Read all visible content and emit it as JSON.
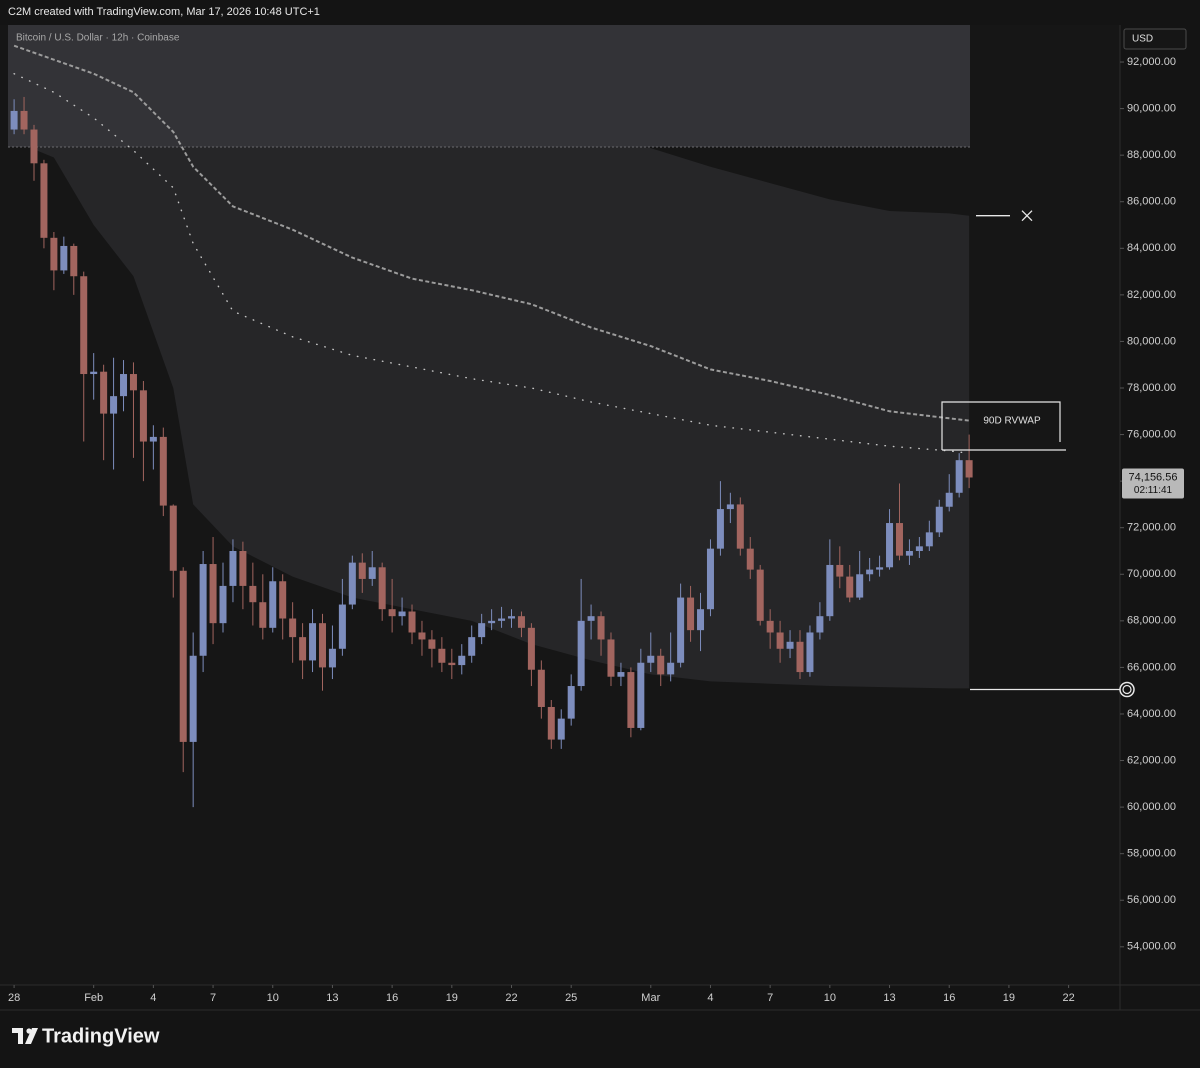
{
  "header": "C2M created with TradingView.com, Mar 17, 2026 10:48 UTC+1",
  "footer_brand": "TradingView",
  "chart_data": {
    "type": "candlestick",
    "title": "Bitcoin / U.S. Dollar · 12h · Coinbase",
    "y_axis_label": "USD",
    "up_color": "#7d8dbd",
    "down_color": "#a2655f",
    "x": [
      "2026-01-28 00:00",
      "2026-01-28 12:00",
      "2026-01-29 00:00",
      "2026-01-29 12:00",
      "2026-01-30 00:00",
      "2026-01-30 12:00",
      "2026-01-31 00:00",
      "2026-01-31 12:00",
      "2026-02-01 00:00",
      "2026-02-01 12:00",
      "2026-02-02 00:00",
      "2026-02-02 12:00",
      "2026-02-03 00:00",
      "2026-02-03 12:00",
      "2026-02-04 00:00",
      "2026-02-04 12:00",
      "2026-02-05 00:00",
      "2026-02-05 12:00",
      "2026-02-06 00:00",
      "2026-02-06 12:00",
      "2026-02-07 00:00",
      "2026-02-07 12:00",
      "2026-02-08 00:00",
      "2026-02-08 12:00",
      "2026-02-09 00:00",
      "2026-02-09 12:00",
      "2026-02-10 00:00",
      "2026-02-10 12:00",
      "2026-02-11 00:00",
      "2026-02-11 12:00",
      "2026-02-12 00:00",
      "2026-02-12 12:00",
      "2026-02-13 00:00",
      "2026-02-13 12:00",
      "2026-02-14 00:00",
      "2026-02-14 12:00",
      "2026-02-15 00:00",
      "2026-02-15 12:00",
      "2026-02-16 00:00",
      "2026-02-16 12:00",
      "2026-02-17 00:00",
      "2026-02-17 12:00",
      "2026-02-18 00:00",
      "2026-02-18 12:00",
      "2026-02-19 00:00",
      "2026-02-19 12:00",
      "2026-02-20 00:00",
      "2026-02-20 12:00",
      "2026-02-21 00:00",
      "2026-02-21 12:00",
      "2026-02-22 00:00",
      "2026-02-22 12:00",
      "2026-02-23 00:00",
      "2026-02-23 12:00",
      "2026-02-24 00:00",
      "2026-02-24 12:00",
      "2026-02-25 00:00",
      "2026-02-25 12:00",
      "2026-02-26 00:00",
      "2026-02-26 12:00",
      "2026-02-27 00:00",
      "2026-02-27 12:00",
      "2026-02-28 00:00",
      "2026-02-28 12:00",
      "2026-03-01 00:00",
      "2026-03-01 12:00",
      "2026-03-02 00:00",
      "2026-03-02 12:00",
      "2026-03-03 00:00",
      "2026-03-03 12:00",
      "2026-03-04 00:00",
      "2026-03-04 12:00",
      "2026-03-05 00:00",
      "2026-03-05 12:00",
      "2026-03-06 00:00",
      "2026-03-06 12:00",
      "2026-03-07 00:00",
      "2026-03-07 12:00",
      "2026-03-08 00:00",
      "2026-03-08 12:00",
      "2026-03-09 00:00",
      "2026-03-09 12:00",
      "2026-03-10 00:00",
      "2026-03-10 12:00",
      "2026-03-11 00:00",
      "2026-03-11 12:00",
      "2026-03-12 00:00",
      "2026-03-12 12:00",
      "2026-03-13 00:00",
      "2026-03-13 12:00",
      "2026-03-14 00:00",
      "2026-03-14 12:00",
      "2026-03-15 00:00",
      "2026-03-15 12:00",
      "2026-03-16 00:00",
      "2026-03-16 12:00",
      "2026-03-17 00:00"
    ],
    "open": [
      89100,
      89900,
      89100,
      87650,
      84450,
      83050,
      84100,
      82800,
      78600,
      78700,
      76900,
      77650,
      78600,
      77900,
      75700,
      75900,
      72950,
      70150,
      62800,
      66500,
      70440,
      67900,
      69500,
      71000,
      69500,
      68800,
      67700,
      69700,
      68100,
      67300,
      66300,
      67900,
      66000,
      66800,
      68700,
      70500,
      69800,
      70300,
      68500,
      68200,
      68400,
      67500,
      67200,
      66800,
      66200,
      66100,
      66500,
      67300,
      67900,
      68000,
      68100,
      68200,
      67700,
      65900,
      64300,
      62900,
      63800,
      65200,
      68000,
      68200,
      67200,
      65600,
      65800,
      63400,
      66200,
      66500,
      65700,
      66200,
      69000,
      67600,
      68500,
      71100,
      72800,
      73000,
      71100,
      70200,
      68000,
      67500,
      66800,
      67100,
      65800,
      67500,
      68200,
      70400,
      69900,
      69000,
      70000,
      70200,
      70300,
      72200,
      70800,
      71000,
      71200,
      71800,
      72900,
      73500,
      74900
    ],
    "high": [
      90400,
      90500,
      89300,
      87800,
      84700,
      84500,
      84200,
      83000,
      79500,
      79000,
      79300,
      79200,
      79100,
      78300,
      76400,
      76300,
      73000,
      70300,
      67500,
      71000,
      71600,
      70500,
      71500,
      71400,
      70500,
      70000,
      70300,
      70000,
      68800,
      67900,
      68500,
      68300,
      67800,
      69800,
      70800,
      70900,
      71000,
      70500,
      69800,
      69000,
      68700,
      68000,
      67600,
      67300,
      66800,
      67000,
      67800,
      68300,
      68500,
      68600,
      68500,
      68400,
      67900,
      66300,
      64600,
      64200,
      65700,
      69800,
      68700,
      68400,
      67500,
      66200,
      66000,
      66800,
      67500,
      66800,
      67500,
      69600,
      69500,
      69200,
      71500,
      74000,
      73500,
      73300,
      71600,
      70400,
      68500,
      68000,
      67600,
      67600,
      67800,
      68800,
      71500,
      71200,
      70400,
      71000,
      70700,
      70800,
      72800,
      73900,
      71500,
      71600,
      72300,
      73200,
      74300,
      75200,
      76000
    ],
    "low": [
      88900,
      88900,
      86900,
      84000,
      82200,
      82900,
      82000,
      75700,
      77500,
      74900,
      74500,
      77000,
      75000,
      74000,
      74500,
      72500,
      69000,
      61500,
      60000,
      65800,
      67000,
      67500,
      68800,
      68500,
      67800,
      67200,
      67500,
      67200,
      66200,
      65500,
      65800,
      65000,
      65500,
      66500,
      68500,
      69200,
      69500,
      68000,
      67500,
      67800,
      67000,
      66500,
      66000,
      65800,
      65500,
      65700,
      66200,
      67000,
      67600,
      67700,
      67700,
      67300,
      65200,
      63800,
      62500,
      62500,
      63500,
      65000,
      67200,
      66500,
      65200,
      65200,
      63000,
      63300,
      65800,
      65200,
      65400,
      66000,
      67100,
      66700,
      68200,
      70800,
      72200,
      70800,
      69800,
      67800,
      66800,
      66200,
      66400,
      65500,
      65600,
      67200,
      68000,
      69400,
      68800,
      68900,
      69700,
      69900,
      70200,
      70600,
      70400,
      70700,
      71000,
      71600,
      72700,
      73300,
      73700
    ],
    "close": [
      89900,
      89100,
      87650,
      84450,
      83050,
      84100,
      82800,
      78600,
      78700,
      76900,
      77650,
      78600,
      77900,
      75700,
      75900,
      72950,
      70150,
      62800,
      66500,
      70440,
      67900,
      69500,
      71000,
      69500,
      68800,
      67700,
      69700,
      68100,
      67300,
      66300,
      67900,
      66000,
      66800,
      68700,
      70500,
      69800,
      70300,
      68500,
      68200,
      68400,
      67500,
      67200,
      66800,
      66200,
      66100,
      66500,
      67300,
      67900,
      68000,
      68100,
      68200,
      67700,
      65900,
      64300,
      62900,
      63800,
      65200,
      68000,
      68200,
      67200,
      65600,
      65800,
      63400,
      66200,
      66500,
      65700,
      66200,
      69000,
      67600,
      68500,
      71100,
      72800,
      73000,
      71100,
      70200,
      68000,
      67500,
      66800,
      67100,
      65800,
      67500,
      68200,
      70400,
      69900,
      69000,
      70000,
      70200,
      70300,
      72200,
      70800,
      71000,
      71200,
      71800,
      72900,
      73500,
      74900,
      74156.56
    ],
    "last_close_label": "74,156.56",
    "countdown": "02:11:41",
    "annotation": "90D RVWAP",
    "overlays": [
      {
        "style": "dashed",
        "color": "#9c9c9c",
        "x": [
          "2026-01-28 00:00",
          "2026-01-30 00:00",
          "2026-02-01 00:00",
          "2026-02-03 00:00",
          "2026-02-05 00:00",
          "2026-02-06 00:00",
          "2026-02-08 00:00",
          "2026-02-11 00:00",
          "2026-02-14 00:00",
          "2026-02-17 00:00",
          "2026-02-20 00:00",
          "2026-02-23 00:00",
          "2026-02-26 00:00",
          "2026-03-01 00:00",
          "2026-03-04 00:00",
          "2026-03-07 00:00",
          "2026-03-10 00:00",
          "2026-03-13 00:00",
          "2026-03-16 00:00",
          "2026-03-17 00:00"
        ],
        "values": [
          92700,
          92100,
          91500,
          90700,
          89000,
          87500,
          85800,
          84800,
          83600,
          82700,
          82200,
          81600,
          80600,
          79800,
          78800,
          78300,
          77700,
          77000,
          76700,
          76600
        ]
      },
      {
        "style": "dotted",
        "color": "#c4c4c4",
        "x": [
          "2026-01-28 00:00",
          "2026-01-30 00:00",
          "2026-02-01 00:00",
          "2026-02-03 00:00",
          "2026-02-05 00:00",
          "2026-02-06 00:00",
          "2026-02-08 00:00",
          "2026-02-11 00:00",
          "2026-02-14 00:00",
          "2026-02-17 00:00",
          "2026-02-20 00:00",
          "2026-02-23 00:00",
          "2026-02-26 00:00",
          "2026-03-01 00:00",
          "2026-03-04 00:00",
          "2026-03-07 00:00",
          "2026-03-10 00:00",
          "2026-03-13 00:00",
          "2026-03-16 00:00",
          "2026-03-17 00:00"
        ],
        "values": [
          91500,
          90700,
          89600,
          88200,
          86600,
          84200,
          81300,
          80200,
          79400,
          78900,
          78400,
          78000,
          77400,
          76900,
          76400,
          76100,
          75800,
          75500,
          75300,
          75200
        ]
      }
    ],
    "band": {
      "color": "#262628",
      "x": [
        "2026-01-28 00:00",
        "2026-01-30 00:00",
        "2026-02-01 00:00",
        "2026-02-03 00:00",
        "2026-02-05 00:00",
        "2026-02-06 00:00",
        "2026-02-08 00:00",
        "2026-02-11 00:00",
        "2026-02-14 00:00",
        "2026-02-17 00:00",
        "2026-02-20 00:00",
        "2026-02-23 00:00",
        "2026-02-26 00:00",
        "2026-03-01 00:00",
        "2026-03-04 00:00",
        "2026-03-07 00:00",
        "2026-03-10 00:00",
        "2026-03-13 00:00",
        "2026-03-16 00:00",
        "2026-03-17 00:00"
      ],
      "upper": [
        null,
        null,
        null,
        null,
        null,
        93500,
        93000,
        92200,
        91500,
        90700,
        90000,
        89400,
        88800,
        88300,
        87500,
        86800,
        86100,
        85600,
        85500,
        85400
      ],
      "lower": [
        88600,
        87900,
        85000,
        82800,
        78000,
        73000,
        71200,
        69900,
        69000,
        68500,
        68000,
        67000,
        66300,
        65700,
        65400,
        65300,
        65200,
        65150,
        65100,
        65100
      ]
    },
    "levels": [
      85400,
      65050
    ],
    "xlim": [
      "2026-01-27 07:00",
      "2026-03-24 14:00"
    ],
    "xticks": [
      {
        "value": "2026-01-28 00:00",
        "label": "28"
      },
      {
        "value": "2026-02-01 00:00",
        "label": "Feb"
      },
      {
        "value": "2026-02-04 00:00",
        "label": "4"
      },
      {
        "value": "2026-02-07 00:00",
        "label": "7"
      },
      {
        "value": "2026-02-10 00:00",
        "label": "10"
      },
      {
        "value": "2026-02-13 00:00",
        "label": "13"
      },
      {
        "value": "2026-02-16 00:00",
        "label": "16"
      },
      {
        "value": "2026-02-19 00:00",
        "label": "19"
      },
      {
        "value": "2026-02-22 00:00",
        "label": "22"
      },
      {
        "value": "2026-02-25 00:00",
        "label": "25"
      },
      {
        "value": "2026-03-01 00:00",
        "label": "Mar"
      },
      {
        "value": "2026-03-04 00:00",
        "label": "4"
      },
      {
        "value": "2026-03-07 00:00",
        "label": "7"
      },
      {
        "value": "2026-03-10 00:00",
        "label": "10"
      },
      {
        "value": "2026-03-13 00:00",
        "label": "13"
      },
      {
        "value": "2026-03-16 00:00",
        "label": "16"
      },
      {
        "value": "2026-03-19 00:00",
        "label": "19"
      },
      {
        "value": "2026-03-22 00:00",
        "label": "22"
      }
    ],
    "ylim": [
      52360,
      93590
    ],
    "yticks": [
      {
        "value": 54000,
        "label": "54,000.00"
      },
      {
        "value": 56000,
        "label": "56,000.00"
      },
      {
        "value": 58000,
        "label": "58,000.00"
      },
      {
        "value": 60000,
        "label": "60,000.00"
      },
      {
        "value": 62000,
        "label": "62,000.00"
      },
      {
        "value": 64000,
        "label": "64,000.00"
      },
      {
        "value": 66000,
        "label": "66,000.00"
      },
      {
        "value": 68000,
        "label": "68,000.00"
      },
      {
        "value": 70000,
        "label": "70,000.00"
      },
      {
        "value": 72000,
        "label": "72,000.00"
      },
      {
        "value": 74000,
        "label": "74,000.00"
      },
      {
        "value": 76000,
        "label": "76,000.00"
      },
      {
        "value": 78000,
        "label": "78,000.00"
      },
      {
        "value": 80000,
        "label": "80,000.00"
      },
      {
        "value": 82000,
        "label": "82,000.00"
      },
      {
        "value": 84000,
        "label": "84,000.00"
      },
      {
        "value": 86000,
        "label": "86,000.00"
      },
      {
        "value": 88000,
        "label": "88,000.00"
      },
      {
        "value": 90000,
        "label": "90,000.00"
      },
      {
        "value": 92000,
        "label": "92,000.00"
      }
    ]
  }
}
